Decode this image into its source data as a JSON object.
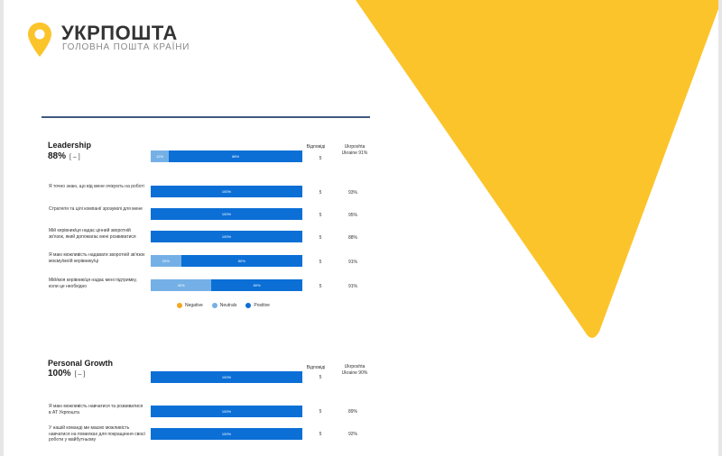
{
  "colors": {
    "accent_yellow": "#fcc42b",
    "negative": "#f5a623",
    "neutral": "#74b0e6",
    "positive": "#0b6fd6",
    "rule": "#3d5a80"
  },
  "logo": {
    "title": "УКРПОШТА",
    "subtitle": "ГОЛОВНА ПОШТА КРАЇНИ",
    "icon": "pin-logo-icon"
  },
  "legend": {
    "negative": "Negative",
    "neutral": "Neutrals",
    "positive": "Positive"
  },
  "sections": [
    {
      "title": "Leadership",
      "score": "88%",
      "delta": "[ – ]",
      "col_respondents": "Відповіді",
      "col_benchmark": "Ukrposhta Ukraine 91%",
      "summary": {
        "neutral": 12,
        "positive": 88,
        "neutral_label": "12%",
        "positive_label": "88%",
        "respondents": "5",
        "benchmark": ""
      },
      "questions": [
        {
          "label": "Я точно знаю, що від мене очікують на роботі",
          "neutral": 0,
          "positive": 100,
          "neutral_label": "",
          "positive_label": "100%",
          "respondents": "5",
          "benchmark": "93%"
        },
        {
          "label": "Стратегія та цілі компанії зрозумілі для мене",
          "neutral": 0,
          "positive": 100,
          "neutral_label": "",
          "positive_label": "100%",
          "respondents": "5",
          "benchmark": "95%"
        },
        {
          "label": "Мій керівник/ця надає цінний зворотній зв'язок, який допомагає мені розвиватися",
          "neutral": 0,
          "positive": 100,
          "neutral_label": "",
          "positive_label": "100%",
          "respondents": "5",
          "benchmark": "88%"
        },
        {
          "label": "Я маю можливість надавати зворотній зв'язок моєму/моїй керівнику/ці",
          "neutral": 20,
          "positive": 80,
          "neutral_label": "20%",
          "positive_label": "80%",
          "respondents": "5",
          "benchmark": "91%"
        },
        {
          "label": "Мій/моя керівник/ця надає мені підтримку, коли це необхідно",
          "neutral": 40,
          "positive": 60,
          "neutral_label": "40%",
          "positive_label": "60%",
          "respondents": "5",
          "benchmark": "91%"
        }
      ]
    },
    {
      "title": "Personal Growth",
      "score": "100%",
      "delta": "[ – ]",
      "col_respondents": "Відповіді",
      "col_benchmark": "Ukrposhta Ukraine 90%",
      "summary": {
        "neutral": 0,
        "positive": 100,
        "neutral_label": "",
        "positive_label": "100%",
        "respondents": "5",
        "benchmark": ""
      },
      "questions": [
        {
          "label": "Я маю можливість навчатися та розвиватися в АТ Укрпошта",
          "neutral": 0,
          "positive": 100,
          "neutral_label": "",
          "positive_label": "100%",
          "respondents": "5",
          "benchmark": "89%"
        },
        {
          "label": "У нашій команді ми маємо можливість навчатися на помилках для покращення своєї роботи у майбутньому",
          "neutral": 0,
          "positive": 100,
          "neutral_label": "",
          "positive_label": "100%",
          "respondents": "5",
          "benchmark": "92%"
        }
      ]
    }
  ]
}
